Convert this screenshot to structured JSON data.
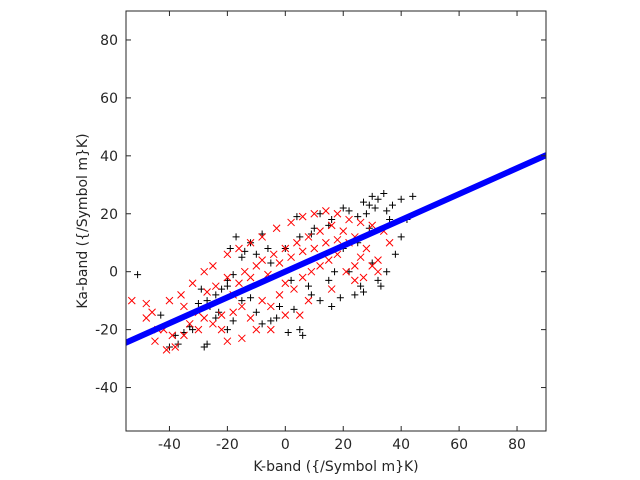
{
  "chart_data": {
    "type": "scatter",
    "title": "",
    "xlabel": "K-band ({/Symbol m}K)",
    "ylabel": "Ka-band ({/Symbol m}K)",
    "xlim": [
      -55,
      90
    ],
    "ylim": [
      -55,
      90
    ],
    "xticks": [
      -40,
      -20,
      0,
      20,
      40,
      60,
      80
    ],
    "yticks": [
      -40,
      -20,
      0,
      20,
      40,
      60,
      80
    ],
    "grid": false,
    "legend": "none",
    "series": [
      {
        "marker": "+",
        "color": "#000000",
        "points": [
          [
            -51,
            -1
          ],
          [
            -43,
            -15
          ],
          [
            -40,
            -26
          ],
          [
            -37,
            -25
          ],
          [
            -28,
            -26
          ],
          [
            -27,
            -25
          ],
          [
            -33,
            -19
          ],
          [
            -30,
            -11
          ],
          [
            -22,
            -6
          ],
          [
            -20,
            -5
          ],
          [
            -18,
            -1
          ],
          [
            -24,
            -8
          ],
          [
            -20,
            -20
          ],
          [
            -18,
            -17
          ],
          [
            -15,
            -10
          ],
          [
            -12,
            -9
          ],
          [
            -10,
            -14
          ],
          [
            -8,
            -18
          ],
          [
            -5,
            -17
          ],
          [
            -2,
            -12
          ],
          [
            3,
            -13
          ],
          [
            5,
            -20
          ],
          [
            6,
            -22
          ],
          [
            2,
            -3
          ],
          [
            -5,
            3
          ],
          [
            -10,
            6
          ],
          [
            -14,
            7
          ],
          [
            -19,
            8
          ],
          [
            -17,
            12
          ],
          [
            -12,
            10
          ],
          [
            -6,
            8
          ],
          [
            0,
            8
          ],
          [
            5,
            12
          ],
          [
            9,
            13
          ],
          [
            10,
            15
          ],
          [
            15,
            16
          ],
          [
            12,
            20
          ],
          [
            20,
            22
          ],
          [
            22,
            21
          ],
          [
            25,
            19
          ],
          [
            28,
            20
          ],
          [
            29,
            23
          ],
          [
            30,
            26
          ],
          [
            31,
            22
          ],
          [
            32,
            25
          ],
          [
            35,
            21
          ],
          [
            37,
            23
          ],
          [
            36,
            18
          ],
          [
            40,
            25
          ],
          [
            44,
            26
          ],
          [
            34,
            27
          ],
          [
            25,
            10
          ],
          [
            20,
            8
          ],
          [
            30,
            3
          ],
          [
            32,
            -3
          ],
          [
            26,
            -5
          ],
          [
            24,
            -8
          ],
          [
            19,
            -9
          ],
          [
            16,
            -12
          ],
          [
            12,
            -10
          ],
          [
            8,
            -5
          ],
          [
            15,
            -3
          ],
          [
            40,
            12
          ],
          [
            38,
            6
          ],
          [
            35,
            0
          ],
          [
            33,
            -5
          ],
          [
            27,
            -7
          ],
          [
            22,
            0
          ],
          [
            -29,
            -6
          ],
          [
            -26,
            -12
          ],
          [
            -32,
            -20
          ],
          [
            -35,
            -21
          ],
          [
            -38,
            -22
          ],
          [
            -24,
            -16
          ],
          [
            -27,
            -10
          ],
          [
            -23,
            -14
          ],
          [
            -20,
            -3
          ],
          [
            -15,
            5
          ],
          [
            -8,
            13
          ],
          [
            4,
            19
          ],
          [
            16,
            18
          ],
          [
            27,
            24
          ],
          [
            42,
            18
          ],
          [
            29,
            15
          ],
          [
            17,
            0
          ],
          [
            9,
            -8
          ],
          [
            -3,
            -16
          ],
          [
            1,
            -21
          ]
        ]
      },
      {
        "marker": "x",
        "color": "#ff0000",
        "points": [
          [
            -53,
            -10
          ],
          [
            -48,
            -11
          ],
          [
            -46,
            -14
          ],
          [
            -45,
            -24
          ],
          [
            -42,
            -20
          ],
          [
            -38,
            -26
          ],
          [
            -35,
            -22
          ],
          [
            -33,
            -18
          ],
          [
            -30,
            -14
          ],
          [
            -27,
            -7
          ],
          [
            -24,
            -5
          ],
          [
            -20,
            -2
          ],
          [
            -18,
            -8
          ],
          [
            -16,
            -4
          ],
          [
            -14,
            0
          ],
          [
            -12,
            -2
          ],
          [
            -10,
            2
          ],
          [
            -8,
            4
          ],
          [
            -6,
            -1
          ],
          [
            -4,
            6
          ],
          [
            -2,
            3
          ],
          [
            0,
            8
          ],
          [
            2,
            5
          ],
          [
            4,
            10
          ],
          [
            6,
            7
          ],
          [
            8,
            12
          ],
          [
            10,
            8
          ],
          [
            12,
            14
          ],
          [
            14,
            10
          ],
          [
            16,
            16
          ],
          [
            18,
            11
          ],
          [
            20,
            14
          ],
          [
            22,
            10
          ],
          [
            24,
            12
          ],
          [
            26,
            5
          ],
          [
            28,
            8
          ],
          [
            30,
            2
          ],
          [
            32,
            4
          ],
          [
            -30,
            -20
          ],
          [
            -25,
            -18
          ],
          [
            -22,
            -15
          ],
          [
            -18,
            -14
          ],
          [
            -15,
            -12
          ],
          [
            -12,
            -16
          ],
          [
            -8,
            -10
          ],
          [
            -5,
            -12
          ],
          [
            -2,
            -8
          ],
          [
            0,
            -4
          ],
          [
            3,
            -6
          ],
          [
            6,
            -2
          ],
          [
            9,
            0
          ],
          [
            12,
            2
          ],
          [
            15,
            4
          ],
          [
            18,
            6
          ],
          [
            21,
            0
          ],
          [
            24,
            2
          ],
          [
            27,
            -2
          ],
          [
            -25,
            2
          ],
          [
            -20,
            6
          ],
          [
            -16,
            8
          ],
          [
            -12,
            10
          ],
          [
            -8,
            12
          ],
          [
            -3,
            15
          ],
          [
            2,
            17
          ],
          [
            6,
            19
          ],
          [
            10,
            20
          ],
          [
            14,
            21
          ],
          [
            18,
            20
          ],
          [
            22,
            18
          ],
          [
            26,
            17
          ],
          [
            30,
            16
          ],
          [
            34,
            14
          ],
          [
            -40,
            -10
          ],
          [
            -36,
            -8
          ],
          [
            -32,
            -4
          ],
          [
            -28,
            0
          ],
          [
            -35,
            -12
          ],
          [
            -28,
            -16
          ],
          [
            -22,
            -20
          ],
          [
            -10,
            -20
          ],
          [
            0,
            -15
          ],
          [
            8,
            -10
          ],
          [
            16,
            -6
          ],
          [
            24,
            -3
          ],
          [
            32,
            0
          ],
          [
            36,
            10
          ],
          [
            -44,
            -20
          ],
          [
            -48,
            -16
          ],
          [
            -39,
            -22
          ],
          [
            -41,
            -27
          ],
          [
            -20,
            -24
          ],
          [
            -15,
            -23
          ],
          [
            -5,
            -20
          ],
          [
            5,
            -15
          ]
        ]
      },
      {
        "name": "fit",
        "style": "thick-line",
        "color": "#0000ff",
        "x": [
          -55,
          90
        ],
        "y": [
          -24.5,
          40.2
        ]
      }
    ]
  }
}
